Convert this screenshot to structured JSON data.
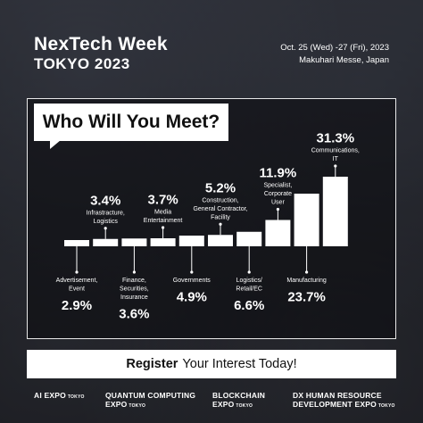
{
  "header": {
    "brand_line1": "NexTech Week",
    "brand_line2": "TOKYO 2023",
    "date": "Oct. 25 (Wed) -27 (Fri), 2023",
    "venue": "Makuhari Messe, Japan"
  },
  "title": "Who Will You Meet?",
  "cta": {
    "bold": "Register",
    "rest": "Your Interest Today!"
  },
  "footer": {
    "expos": [
      {
        "line1": "AI EXPO",
        "line1_tokyo": "TOKYO",
        "line2": "",
        "line2_tokyo": ""
      },
      {
        "line1": "QUANTUM COMPUTING",
        "line1_tokyo": "",
        "line2": "EXPO",
        "line2_tokyo": "TOKYO"
      },
      {
        "line1": "BLOCKCHAIN",
        "line1_tokyo": "",
        "line2": "EXPO",
        "line2_tokyo": "TOKYO"
      },
      {
        "line1": "DX HUMAN RESOURCE",
        "line1_tokyo": "",
        "line2": "DEVELOPMENT EXPO",
        "line2_tokyo": "TOKYO"
      }
    ]
  },
  "colors": {
    "bar": "#ffffff",
    "stroke": "#ffffff",
    "panel_border": "#ffffff"
  },
  "chart_data": {
    "type": "bar",
    "title": "Who Will You Meet?",
    "categories": [
      "Advertisement, Event",
      "Infrastructure, Logistics",
      "Finance, Securities, Insurance",
      "Media Entertainment",
      "Governments",
      "Construction, General Contractor, Facility",
      "Logistics/ Retail/EC",
      "Specialist, Corporate User",
      "Manufacturing",
      "Communications, IT"
    ],
    "bars": [
      {
        "label_lines": [
          "Advertisement,",
          "Event"
        ],
        "value": 2.9,
        "value_text": "2.9%",
        "position": "below"
      },
      {
        "label_lines": [
          "Infrastracture,",
          "Logistics"
        ],
        "value": 3.4,
        "value_text": "3.4%",
        "position": "above"
      },
      {
        "label_lines": [
          "Finance,",
          "Securities,",
          "Insurance"
        ],
        "value": 3.6,
        "value_text": "3.6%",
        "position": "below"
      },
      {
        "label_lines": [
          "Media",
          "Entertainment"
        ],
        "value": 3.7,
        "value_text": "3.7%",
        "position": "above"
      },
      {
        "label_lines": [
          "Governments"
        ],
        "value": 4.9,
        "value_text": "4.9%",
        "position": "below"
      },
      {
        "label_lines": [
          "Construction,",
          "General Contractor,",
          "Facility"
        ],
        "value": 5.2,
        "value_text": "5.2%",
        "position": "above"
      },
      {
        "label_lines": [
          "Logistics/",
          "Retail/EC"
        ],
        "value": 6.6,
        "value_text": "6.6%",
        "position": "below"
      },
      {
        "label_lines": [
          "Specialist,",
          "Corporate",
          "User"
        ],
        "value": 11.9,
        "value_text": "11.9%",
        "position": "above"
      },
      {
        "label_lines": [
          "Manufacturing"
        ],
        "value": 23.7,
        "value_text": "23.7%",
        "position": "below"
      },
      {
        "label_lines": [
          "Communications,",
          "IT"
        ],
        "value": 31.3,
        "value_text": "31.3%",
        "position": "above"
      }
    ],
    "xlabel": "",
    "ylabel": "",
    "grid": false,
    "legend": "none"
  }
}
